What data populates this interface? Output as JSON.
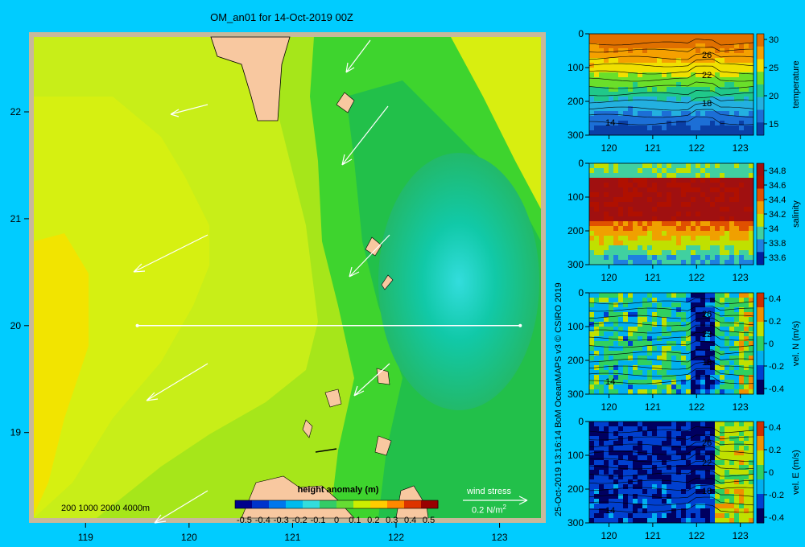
{
  "title": "OM_an01 for 14-Oct-2019 00Z",
  "copyright": "25-Oct-2019 13:16:14 BoM OceanMAPS v3   © CSIRO 2019",
  "map": {
    "x_ticks": [
      "119",
      "120",
      "121",
      "122",
      "123"
    ],
    "y_ticks": [
      "22",
      "21",
      "20",
      "19"
    ],
    "xlim": [
      118.5,
      123.4
    ],
    "ylim": [
      18.2,
      22.7
    ],
    "section_line": {
      "lat": 20.0,
      "lon_start": 119.5,
      "lon_end": 123.2
    },
    "bathymetry_legend": "200  1000  2000  4000m",
    "colorbar": {
      "label": "height anomaly  (m)",
      "ticks": [
        "-0.5",
        "-0.4",
        "-0.3",
        "-0.2",
        "-0.1",
        "0",
        "0.1",
        "0.2",
        "0.3",
        "0.4",
        "0.5"
      ],
      "colors": [
        "#00008b",
        "#0033cc",
        "#0077ee",
        "#00bbee",
        "#33dddd",
        "#33cc66",
        "#66dd33",
        "#ccee00",
        "#ffcc00",
        "#ff8800",
        "#dd3300",
        "#990000"
      ]
    },
    "wind_legend": {
      "label": "wind stress",
      "unit": "0.2 N/m",
      "superscript": "2"
    },
    "colors": {
      "water": "#00ccff",
      "land": "#f8c8a0",
      "frame": "#c8b89a",
      "arrow": "#ffffff"
    }
  },
  "chart_data": [
    {
      "type": "heatmap",
      "field": "height anomaly",
      "unit": "m",
      "x_range": [
        118.5,
        123.4
      ],
      "y_range": [
        18.2,
        22.7
      ],
      "vmin": -0.5,
      "vmax": 0.5,
      "features": [
        {
          "description": "",
          "center": [
            122.5,
            20.35
          ],
          "value": -0.05
        },
        {
          "description": "",
          "center": [
            118.7,
            20.0
          ],
          "value": 0.3
        }
      ]
    },
    {
      "type": "heatmap",
      "colorbar_label": "temperature",
      "x_ticks": [
        "120",
        "121",
        "122",
        "123"
      ],
      "y_ticks": [
        "0",
        "100",
        "200",
        "300"
      ],
      "cbar_ticks": [
        "30",
        "25",
        "20",
        "15"
      ],
      "contour_labels": [
        "26",
        "22",
        "18",
        "14"
      ],
      "vmin": 13,
      "vmax": 31
    },
    {
      "type": "heatmap",
      "colorbar_label": "salinity",
      "x_ticks": [
        "120",
        "121",
        "122",
        "123"
      ],
      "y_ticks": [
        "0",
        "100",
        "200",
        "300"
      ],
      "cbar_ticks": [
        "34.8",
        "34.6",
        "34.4",
        "34.2",
        "34",
        "33.8",
        "33.6"
      ],
      "contour_labels": [],
      "vmin": 33.5,
      "vmax": 34.9
    },
    {
      "type": "heatmap",
      "colorbar_label": "vel. N  (m/s)",
      "x_ticks": [
        "120",
        "121",
        "122",
        "123"
      ],
      "y_ticks": [
        "0",
        "100",
        "200",
        "300"
      ],
      "cbar_ticks": [
        "0.4",
        "0.2",
        "0",
        "-0.2",
        "-0.4"
      ],
      "contour_labels": [
        "26",
        "22",
        "18",
        "14"
      ],
      "vmin": -0.45,
      "vmax": 0.45
    },
    {
      "type": "heatmap",
      "colorbar_label": "vel. E  (m/s)",
      "x_ticks": [
        "120",
        "121",
        "122",
        "123"
      ],
      "y_ticks": [
        "0",
        "100",
        "200",
        "300"
      ],
      "cbar_ticks": [
        "0.4",
        "0.2",
        "0",
        "-0.2",
        "-0.4"
      ],
      "contour_labels": [
        "26",
        "22",
        "18",
        "14"
      ],
      "vmin": -0.45,
      "vmax": 0.45
    }
  ]
}
